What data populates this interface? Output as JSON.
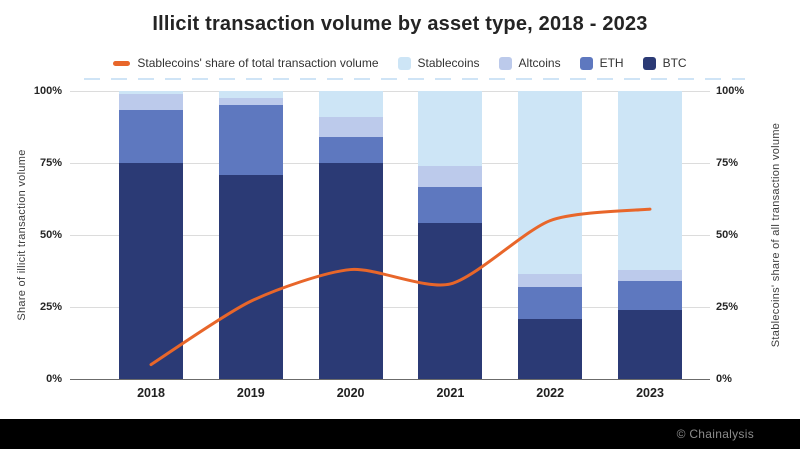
{
  "title": "Illicit transaction volume by asset type, 2018 - 2023",
  "legend": {
    "line_label": "Stablecoins' share of total transaction volume"
  },
  "axes": {
    "left_title": "Share of illicit transaction volume",
    "right_title": "Stablecoins' share of all transaction volume",
    "ticks": [
      "100%",
      "75%",
      "50%",
      "25%",
      "0%"
    ],
    "tick_values": [
      100,
      75,
      50,
      25,
      0
    ]
  },
  "chart_data": {
    "type": "bar",
    "subtype": "stacked-bar-with-line",
    "categories": [
      "2018",
      "2019",
      "2020",
      "2021",
      "2022",
      "2023"
    ],
    "stacked_series": [
      {
        "name": "BTC",
        "color": "#2b3a75",
        "values": [
          75,
          71,
          75,
          54,
          21,
          24
        ]
      },
      {
        "name": "ETH",
        "color": "#5e78bf",
        "values": [
          18.5,
          24,
          9,
          12.5,
          11,
          10
        ]
      },
      {
        "name": "Altcoins",
        "color": "#bccaeb",
        "values": [
          5.5,
          2.5,
          7,
          7.5,
          4.5,
          4
        ]
      },
      {
        "name": "Stablecoins",
        "color": "#cde5f6",
        "values": [
          1,
          2.5,
          9,
          26,
          63.5,
          62
        ]
      }
    ],
    "line_series": {
      "name": "Stablecoins' share of total transaction volume",
      "color": "#e8662a",
      "values": [
        5,
        27,
        38,
        33,
        55,
        59
      ]
    },
    "ylabel": "Share of illicit transaction volume",
    "y2label": "Stablecoins' share of all transaction volume",
    "ylim": [
      0,
      100
    ],
    "y2lim": [
      0,
      100
    ],
    "grid": true,
    "legend_position": "top"
  },
  "footer": {
    "credit": "© Chainalysis"
  }
}
